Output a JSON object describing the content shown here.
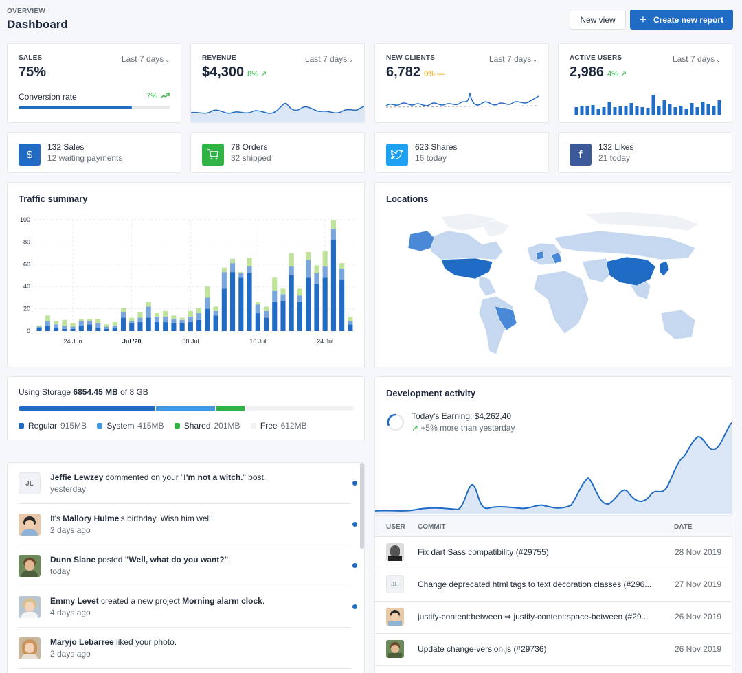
{
  "header": {
    "pretitle": "OVERVIEW",
    "title": "Dashboard",
    "new_view": "New view",
    "create_report": "Create new report"
  },
  "kpis": [
    {
      "label": "SALES",
      "range": "Last 7 days",
      "value": "75%",
      "sub_label": "Conversion rate",
      "sub_value": "7%",
      "progress": 0.75
    },
    {
      "label": "REVENUE",
      "range": "Last 7 days",
      "value": "$4,300",
      "trend": "8%"
    },
    {
      "label": "NEW CLIENTS",
      "range": "Last 7 days",
      "value": "6,782",
      "trend": "0%"
    },
    {
      "label": "ACTIVE USERS",
      "range": "Last 7 days",
      "value": "2,986",
      "trend": "4%"
    }
  ],
  "mini_stats": [
    {
      "icon": "dollar-icon",
      "line1": "132 Sales",
      "line2": "12 waiting payments",
      "color": "#206bc4"
    },
    {
      "icon": "cart-icon",
      "line1": "78 Orders",
      "line2": "32 shipped",
      "color": "#2fb344"
    },
    {
      "icon": "twitter-icon",
      "line1": "623 Shares",
      "line2": "16 today",
      "color": "#1da1f2"
    },
    {
      "icon": "facebook-icon",
      "line1": "132 Likes",
      "line2": "21 today",
      "color": "#3b5998"
    }
  ],
  "traffic": {
    "title": "Traffic summary"
  },
  "chart_data": {
    "type": "bar",
    "stacked": true,
    "ylim": [
      0,
      100
    ],
    "yticks": [
      0,
      20,
      40,
      60,
      80,
      100
    ],
    "xtick_labels": [
      {
        "i": 4,
        "label": "24 Jun"
      },
      {
        "i": 11,
        "label": "Jul '20"
      },
      {
        "i": 18,
        "label": "08 Jul"
      },
      {
        "i": 26,
        "label": "16 Jul"
      },
      {
        "i": 34,
        "label": "24 Jul"
      }
    ],
    "series": [
      {
        "color": "#206bc4",
        "values": [
          3,
          5,
          3,
          2,
          2,
          5,
          6,
          3,
          2,
          3,
          12,
          7,
          8,
          12,
          8,
          8,
          7,
          7,
          8,
          10,
          20,
          14,
          38,
          53,
          48,
          52,
          16,
          12,
          26,
          27,
          50,
          26,
          48,
          42,
          48,
          82,
          46,
          6
        ]
      },
      {
        "color": "#79a6dc",
        "values": [
          1,
          4,
          3,
          3,
          2,
          4,
          3,
          4,
          2,
          2,
          5,
          2,
          4,
          10,
          5,
          5,
          4,
          3,
          5,
          6,
          10,
          4,
          15,
          8,
          4,
          6,
          8,
          6,
          10,
          6,
          8,
          6,
          16,
          10,
          10,
          10,
          10,
          3
        ]
      },
      {
        "color": "#bfe399",
        "values": [
          1,
          5,
          3,
          5,
          3,
          2,
          2,
          4,
          2,
          3,
          4,
          3,
          5,
          4,
          3,
          5,
          3,
          2,
          5,
          5,
          10,
          4,
          4,
          4,
          1,
          8,
          2,
          4,
          12,
          5,
          12,
          6,
          7,
          7,
          14,
          8,
          5,
          4
        ]
      }
    ]
  },
  "locations": {
    "title": "Locations"
  },
  "storage": {
    "prefix": "Using Storage ",
    "used": "6854.45 MB",
    "suffix": " of 8 GB",
    "legend": [
      {
        "name": "Regular",
        "size": "915MB",
        "color": "#206bc4",
        "share": 0.41
      },
      {
        "name": "System",
        "size": "415MB",
        "color": "#4299e1",
        "share": 0.18
      },
      {
        "name": "Shared",
        "size": "201MB",
        "color": "#2fb344",
        "share": 0.085
      },
      {
        "name": "Free",
        "size": "612MB",
        "color": "#f0f2f6",
        "share": 0.325
      }
    ]
  },
  "activity": [
    {
      "pre": "",
      "name": "Jeffie Lewzey",
      "mid": " commented on your \"",
      "strong2": "I'm not a witch.",
      "post": "\" post.",
      "time": "yesterday",
      "avatar": "JL"
    },
    {
      "pre": "It's ",
      "name": "Mallory Hulme",
      "mid": "'s birthday. Wish him well!",
      "strong2": "",
      "post": "",
      "time": "2 days ago",
      "avatar": ""
    },
    {
      "pre": "",
      "name": "Dunn Slane",
      "mid": " posted ",
      "strong2": "\"Well, what do you want?\"",
      "post": ".",
      "time": "today",
      "avatar": ""
    },
    {
      "pre": "",
      "name": "Emmy Levet",
      "mid": " created a new project ",
      "strong2": "Morning alarm clock",
      "post": ".",
      "time": "4 days ago",
      "avatar": ""
    },
    {
      "pre": "",
      "name": "Maryjo Lebarree",
      "mid": " liked your photo.",
      "strong2": "",
      "post": "",
      "time": "2 days ago",
      "avatar": ""
    }
  ],
  "dev": {
    "title": "Development activity",
    "earning": "Today's Earning: $4,262,40",
    "change": "+5% more than yesterday",
    "headers": {
      "user": "USER",
      "commit": "COMMIT",
      "date": "DATE"
    },
    "rows": [
      {
        "commit": "Fix dart Sass compatibility (#29755)",
        "date": "28 Nov 2019",
        "avatar": ""
      },
      {
        "commit": "Change deprecated html tags to text decoration classes (#296...",
        "date": "27 Nov 2019",
        "avatar": "JL"
      },
      {
        "commit": "justify-content:between ⇒ justify-content:space-between (#29...",
        "date": "26 Nov 2019",
        "avatar": ""
      },
      {
        "commit": "Update change-version.js (#29736)",
        "date": "26 Nov 2019",
        "avatar": ""
      }
    ]
  }
}
